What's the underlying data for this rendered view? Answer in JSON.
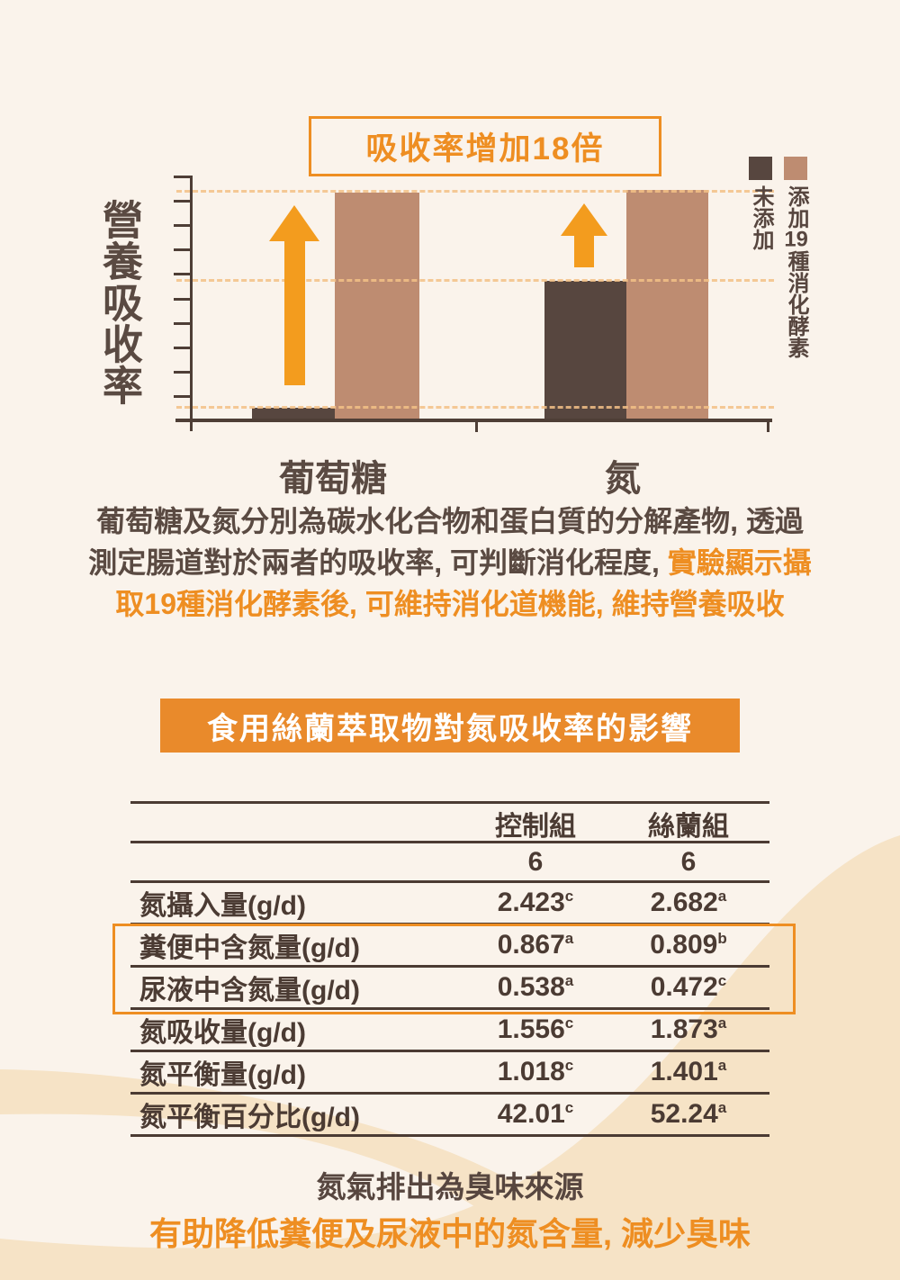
{
  "badge": {
    "label": "吸收率增加18倍"
  },
  "chart_data": {
    "type": "bar",
    "title": "吸收率增加18倍",
    "ylabel": "營養吸收率",
    "xlabel": "",
    "categories": [
      "葡萄糖",
      "氮"
    ],
    "series": [
      {
        "name": "未添加",
        "color": "#57463F",
        "values": [
          0.5,
          5.7
        ]
      },
      {
        "name": "添加19種消化酵素",
        "color": "#BE8C71",
        "values": [
          9.3,
          9.4
        ]
      }
    ],
    "ylim": [
      0,
      10
    ],
    "gridlines": [
      0.5,
      5.7,
      9.35
    ],
    "grid_style": "dashed",
    "legend_position": "top-right",
    "annotations": [
      "吸收率增加18倍",
      "up-arrow-glucose",
      "up-arrow-nitrogen"
    ]
  },
  "legend": {
    "item1": "未添加",
    "item2_parts": [
      "添加",
      "19",
      "種消化酵素"
    ]
  },
  "paragraph": {
    "line1": "葡萄糖及氮分別為碳水化合物和蛋白質的分解產物, 透過",
    "line2_dark": "測定腸道對於兩者的吸收率, 可判斷消化程度, ",
    "line2_orange": "實驗顯示攝",
    "line3": "取19種消化酵素後, 可維持消化道機能, 維持營養吸收"
  },
  "table": {
    "title": "食用絲蘭萃取物對氮吸收率的影響",
    "col_headers": [
      "控制組",
      "絲蘭組"
    ],
    "n_row": [
      "6",
      "6"
    ],
    "rows": [
      {
        "label": "氮攝入量(g/d)",
        "v1": "2.423",
        "s1": "c",
        "v2": "2.682",
        "s2": "a"
      },
      {
        "label": "糞便中含氮量(g/d)",
        "v1": "0.867",
        "s1": "a",
        "v2": "0.809",
        "s2": "b"
      },
      {
        "label": "尿液中含氮量(g/d)",
        "v1": "0.538",
        "s1": "a",
        "v2": "0.472",
        "s2": "c"
      },
      {
        "label": "氮吸收量(g/d)",
        "v1": "1.556",
        "s1": "c",
        "v2": "1.873",
        "s2": "a"
      },
      {
        "label": "氮平衡量(g/d)",
        "v1": "1.018",
        "s1": "c",
        "v2": "1.401",
        "s2": "a"
      },
      {
        "label": "氮平衡百分比(g/d)",
        "v1": "42.01",
        "s1": "c",
        "v2": "52.24",
        "s2": "a"
      }
    ],
    "highlighted_rows": [
      "糞便中含氮量(g/d)",
      "尿液中含氮量(g/d)"
    ]
  },
  "footer": {
    "line1": "氮氣排出為臭味來源",
    "line2": "有助降低糞便及尿液中的氮含量, 減少臭味"
  },
  "colors": {
    "orange": "#EE8E22",
    "banner_orange": "#E98A2B",
    "dark_brown_bar": "#57463F",
    "light_brown_bar": "#BE8C71",
    "axis_brown": "#4E3E36",
    "text_dark": "#5A4A42",
    "table_text": "#4B3B33",
    "dashed_line": "#F4C187",
    "bg_cream": "#FAF3EB",
    "bg_tan": "#F6E3C6"
  }
}
